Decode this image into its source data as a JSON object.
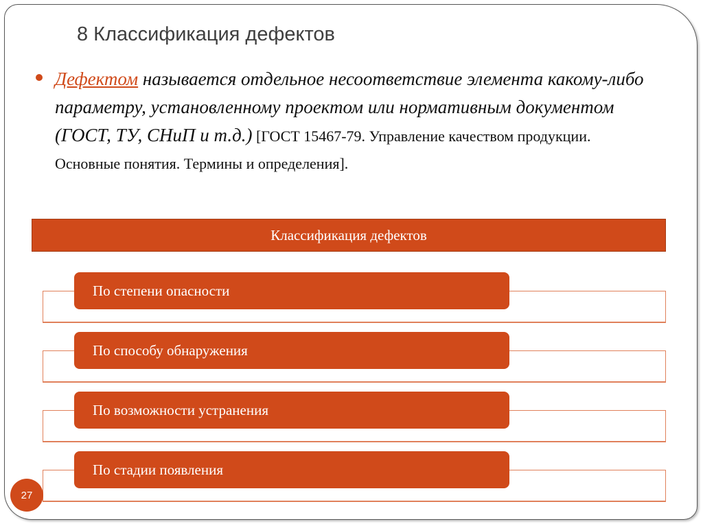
{
  "slide": {
    "title": "8 Классификация дефектов",
    "page_number": "27",
    "accent_color": "#d04a1a"
  },
  "definition": {
    "term": "Дефектом",
    "text": " называется отдельное несоответствие элемента какому-либо параметру, установленному проектом или нормативным документом (ГОСТ, ТУ, СНиП и т.д.)",
    "reference_line1": " [ГОСТ 15467-79. Управление качеством продукции.",
    "reference_line2": "Основные понятия. Термины и определения]."
  },
  "diagram": {
    "header": "Классификация дефектов",
    "items": [
      {
        "label": "По степени опасности"
      },
      {
        "label": "По способу обнаружения"
      },
      {
        "label": "По возможности устранения"
      },
      {
        "label": "По стадии появления"
      }
    ]
  }
}
